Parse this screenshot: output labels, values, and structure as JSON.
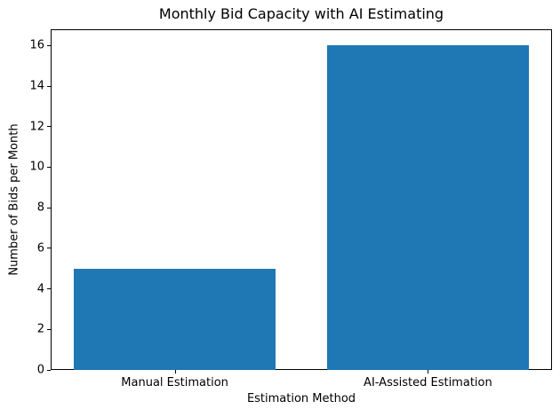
{
  "chart_data": {
    "type": "bar",
    "title": "Monthly Bid Capacity with AI Estimating",
    "xlabel": "Estimation Method",
    "ylabel": "Number of Bids per Month",
    "categories": [
      "Manual Estimation",
      "AI-Assisted Estimation"
    ],
    "values": [
      5,
      16
    ],
    "bar_color": "#1f77b4",
    "ylim": [
      0,
      16.8
    ],
    "yticks": [
      0,
      2,
      4,
      6,
      8,
      10,
      12,
      14,
      16
    ],
    "xlim": [
      -0.49,
      1.49
    ],
    "bar_width": 0.8,
    "grid": false,
    "legend_position": "none"
  }
}
